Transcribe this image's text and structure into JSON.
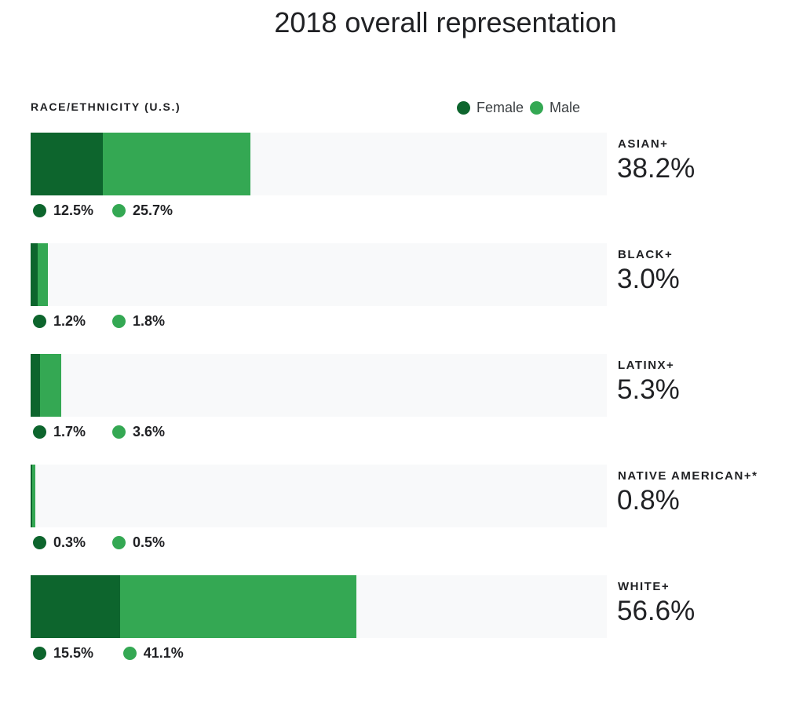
{
  "chart_data": {
    "type": "bar",
    "stacked": true,
    "orientation": "horizontal",
    "title": "2018 overall representation",
    "section_label": "RACE/ETHNICITY (U.S.)",
    "xlim": [
      0,
      100
    ],
    "unit": "%",
    "grid": false,
    "legend_placement": "top-right",
    "categories": [
      "ASIAN+",
      "BLACK+",
      "LATINX+",
      "NATIVE AMERICAN+*",
      "WHITE+"
    ],
    "totals": [
      "38.2%",
      "3.0%",
      "5.3%",
      "0.8%",
      "56.6%"
    ],
    "series": [
      {
        "name": "Female",
        "color": "#0d652d",
        "values": [
          12.5,
          1.2,
          1.7,
          0.3,
          15.5
        ],
        "labels": [
          "12.5%",
          "1.2%",
          "1.7%",
          "0.3%",
          "15.5%"
        ]
      },
      {
        "name": "Male",
        "color": "#34a853",
        "values": [
          25.7,
          1.8,
          3.6,
          0.5,
          41.1
        ],
        "labels": [
          "25.7%",
          "1.8%",
          "3.6%",
          "0.5%",
          "41.1%"
        ]
      }
    ],
    "track_color": "#f8f9fa"
  }
}
